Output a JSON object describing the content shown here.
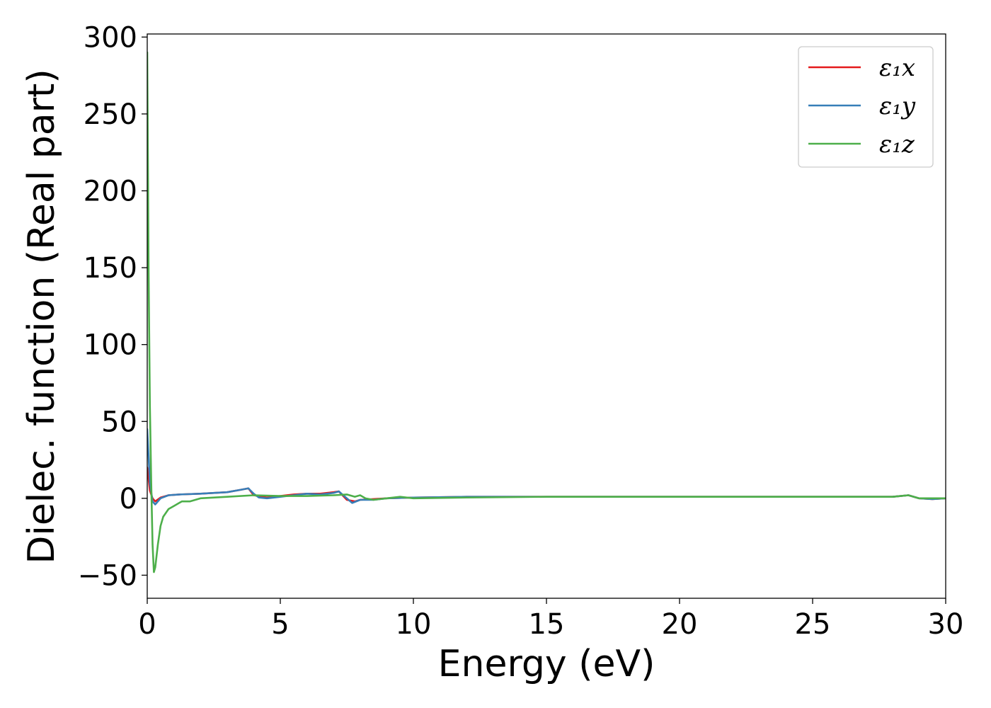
{
  "chart_data": {
    "type": "line",
    "xlabel": "Energy (eV)",
    "ylabel": "Dielec. function (Real part)",
    "xlim": [
      0,
      30
    ],
    "ylim": [
      -65,
      302
    ],
    "xticks": [
      0,
      5,
      10,
      15,
      20,
      25,
      30
    ],
    "yticks": [
      -50,
      0,
      50,
      100,
      150,
      200,
      250,
      300
    ],
    "xtick_labels": [
      "0",
      "5",
      "10",
      "15",
      "20",
      "25",
      "30"
    ],
    "ytick_labels": [
      "−50",
      "0",
      "50",
      "100",
      "150",
      "200",
      "250",
      "300"
    ],
    "grid": false,
    "legend_position": "top-right",
    "series": [
      {
        "name": "ε₁x",
        "color": "#e41a1c",
        "x": [
          0.0,
          0.1,
          0.2,
          0.3,
          0.5,
          0.8,
          1.2,
          2.0,
          3.0,
          3.5,
          3.8,
          4.0,
          4.5,
          5.0,
          5.5,
          6.0,
          6.5,
          7.0,
          7.2,
          7.5,
          7.8,
          8.0,
          8.5,
          9.0,
          10.0,
          12.0,
          15.0,
          18.0,
          20.0,
          22.0,
          24.0,
          25.0,
          26.0,
          27.0,
          28.0,
          28.6,
          29.0,
          29.5,
          30.0
        ],
        "y": [
          20,
          5,
          0,
          -2,
          0.5,
          2,
          2.5,
          3,
          4,
          5.5,
          6.5,
          2,
          0.5,
          1.5,
          2.5,
          3,
          3,
          4,
          4.5,
          -1,
          -2,
          -1,
          -0.5,
          0,
          0.5,
          1,
          1,
          1,
          1,
          1,
          1,
          1,
          1,
          1,
          1,
          2,
          0,
          -0.5,
          0
        ]
      },
      {
        "name": "ε₁y",
        "color": "#377eb8",
        "x": [
          0.0,
          0.1,
          0.2,
          0.3,
          0.5,
          0.8,
          1.2,
          2.0,
          3.0,
          3.5,
          3.8,
          4.0,
          4.2,
          4.5,
          5.0,
          5.5,
          6.0,
          6.5,
          7.0,
          7.2,
          7.5,
          7.7,
          8.0,
          8.5,
          9.0,
          10.0,
          12.0,
          15.0,
          18.0,
          20.0,
          22.0,
          24.0,
          25.0,
          26.0,
          27.0,
          28.0,
          28.6,
          29.0,
          29.5,
          30.0
        ],
        "y": [
          45,
          10,
          -2,
          -4,
          0,
          2,
          2.5,
          3,
          4,
          5.5,
          6.5,
          3,
          0.5,
          0,
          1,
          2,
          3,
          2.5,
          3.5,
          4.5,
          0,
          -3,
          -1,
          -1,
          0,
          0.5,
          1,
          1,
          1,
          1,
          1,
          1,
          1,
          1,
          1,
          1,
          2,
          0,
          -0.5,
          0
        ]
      },
      {
        "name": "ε₁z",
        "color": "#4daf4a",
        "x": [
          0.0,
          0.05,
          0.1,
          0.15,
          0.2,
          0.25,
          0.3,
          0.4,
          0.5,
          0.6,
          0.8,
          1.0,
          1.3,
          1.6,
          2.0,
          3.0,
          4.0,
          5.0,
          6.0,
          7.0,
          7.5,
          7.8,
          8.0,
          8.2,
          8.5,
          9.0,
          9.5,
          10.0,
          12.0,
          15.0,
          18.0,
          20.0,
          22.0,
          24.0,
          25.0,
          26.0,
          27.0,
          28.0,
          28.6,
          29.0,
          29.5,
          30.0
        ],
        "y": [
          290,
          150,
          60,
          10,
          -30,
          -48,
          -45,
          -30,
          -18,
          -12,
          -7,
          -5,
          -2,
          -2,
          0,
          1,
          2,
          1.5,
          1.5,
          2,
          2.5,
          1,
          2,
          0,
          -1,
          0,
          1,
          0,
          0.5,
          1,
          1,
          1,
          1,
          1,
          1,
          1,
          1,
          1,
          2,
          0,
          0,
          0
        ]
      }
    ]
  }
}
